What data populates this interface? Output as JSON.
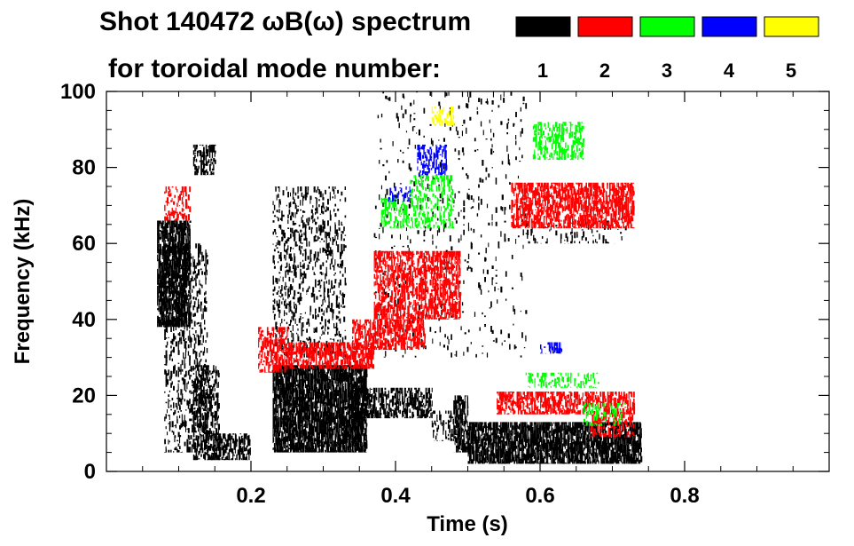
{
  "chart_data": {
    "type": "heatmap",
    "title": "Shot 140472 ωB(ω) spectrum",
    "subtitle": "for toroidal mode number:",
    "xlabel": "Time (s)",
    "ylabel": "Frequency (kHz)",
    "xlim": [
      0.0,
      1.0
    ],
    "ylim": [
      0,
      100
    ],
    "x_ticks": [
      0.2,
      0.4,
      0.6,
      0.8
    ],
    "x_tick_labels": [
      "0.2",
      "0.4",
      "0.6",
      "0.8"
    ],
    "y_ticks": [
      0,
      20,
      40,
      60,
      80,
      100
    ],
    "y_tick_labels": [
      "0",
      "20",
      "40",
      "60",
      "80",
      "100"
    ],
    "legend_placement": "top-right",
    "legend": [
      {
        "mode": "1",
        "color": "#000000"
      },
      {
        "mode": "2",
        "color": "#ff0000"
      },
      {
        "mode": "3",
        "color": "#00ff00"
      },
      {
        "mode": "4",
        "color": "#0000ff"
      },
      {
        "mode": "5",
        "color": "#ffff00"
      }
    ],
    "series": [
      {
        "name": "n=1",
        "color": "#000000",
        "regions": [
          {
            "t0": 0.07,
            "t1": 0.115,
            "f0": 38,
            "f1": 66,
            "density": 0.85
          },
          {
            "t0": 0.08,
            "t1": 0.14,
            "f0": 5,
            "f1": 60,
            "density": 0.3
          },
          {
            "t0": 0.12,
            "t1": 0.155,
            "f0": 3,
            "f1": 28,
            "density": 0.55
          },
          {
            "t0": 0.14,
            "t1": 0.2,
            "f0": 3,
            "f1": 10,
            "density": 0.6
          },
          {
            "t0": 0.12,
            "t1": 0.15,
            "f0": 78,
            "f1": 86,
            "density": 0.5
          },
          {
            "t0": 0.23,
            "t1": 0.36,
            "f0": 5,
            "f1": 28,
            "density": 0.9
          },
          {
            "t0": 0.23,
            "t1": 0.33,
            "f0": 30,
            "f1": 75,
            "density": 0.25
          },
          {
            "t0": 0.34,
            "t1": 0.45,
            "f0": 14,
            "f1": 22,
            "density": 0.6
          },
          {
            "t0": 0.45,
            "t1": 0.48,
            "f0": 8,
            "f1": 16,
            "density": 0.35
          },
          {
            "t0": 0.48,
            "t1": 0.5,
            "f0": 5,
            "f1": 20,
            "density": 0.8
          },
          {
            "t0": 0.5,
            "t1": 0.74,
            "f0": 2,
            "f1": 13,
            "density": 0.85
          },
          {
            "t0": 0.37,
            "t1": 0.58,
            "f0": 30,
            "f1": 100,
            "density": 0.05
          },
          {
            "t0": 0.58,
            "t1": 0.72,
            "f0": 60,
            "f1": 66,
            "density": 0.15
          }
        ]
      },
      {
        "name": "n=2",
        "color": "#ff0000",
        "regions": [
          {
            "t0": 0.08,
            "t1": 0.115,
            "f0": 66,
            "f1": 75,
            "density": 0.45
          },
          {
            "t0": 0.21,
            "t1": 0.25,
            "f0": 26,
            "f1": 38,
            "density": 0.55
          },
          {
            "t0": 0.25,
            "t1": 0.37,
            "f0": 27,
            "f1": 34,
            "density": 0.7
          },
          {
            "t0": 0.34,
            "t1": 0.44,
            "f0": 32,
            "f1": 40,
            "density": 0.65
          },
          {
            "t0": 0.37,
            "t1": 0.49,
            "f0": 40,
            "f1": 58,
            "density": 0.65
          },
          {
            "t0": 0.54,
            "t1": 0.73,
            "f0": 15,
            "f1": 21,
            "density": 0.65
          },
          {
            "t0": 0.67,
            "t1": 0.73,
            "f0": 9,
            "f1": 15,
            "density": 0.5
          },
          {
            "t0": 0.56,
            "t1": 0.73,
            "f0": 64,
            "f1": 76,
            "density": 0.7
          }
        ]
      },
      {
        "name": "n=3",
        "color": "#00ff00",
        "regions": [
          {
            "t0": 0.38,
            "t1": 0.48,
            "f0": 64,
            "f1": 72,
            "density": 0.4
          },
          {
            "t0": 0.42,
            "t1": 0.48,
            "f0": 72,
            "f1": 78,
            "density": 0.3
          },
          {
            "t0": 0.59,
            "t1": 0.66,
            "f0": 82,
            "f1": 92,
            "density": 0.45
          },
          {
            "t0": 0.58,
            "t1": 0.68,
            "f0": 22,
            "f1": 26,
            "density": 0.35
          },
          {
            "t0": 0.66,
            "t1": 0.72,
            "f0": 12,
            "f1": 18,
            "density": 0.3
          }
        ]
      },
      {
        "name": "n=4",
        "color": "#0000ff",
        "regions": [
          {
            "t0": 0.43,
            "t1": 0.47,
            "f0": 78,
            "f1": 86,
            "density": 0.5
          },
          {
            "t0": 0.39,
            "t1": 0.42,
            "f0": 71,
            "f1": 75,
            "density": 0.35
          },
          {
            "t0": 0.6,
            "t1": 0.63,
            "f0": 31,
            "f1": 34,
            "density": 0.35
          }
        ]
      },
      {
        "name": "n=5",
        "color": "#ffff00",
        "regions": [
          {
            "t0": 0.45,
            "t1": 0.48,
            "f0": 91,
            "f1": 96,
            "density": 0.4
          }
        ]
      }
    ]
  }
}
